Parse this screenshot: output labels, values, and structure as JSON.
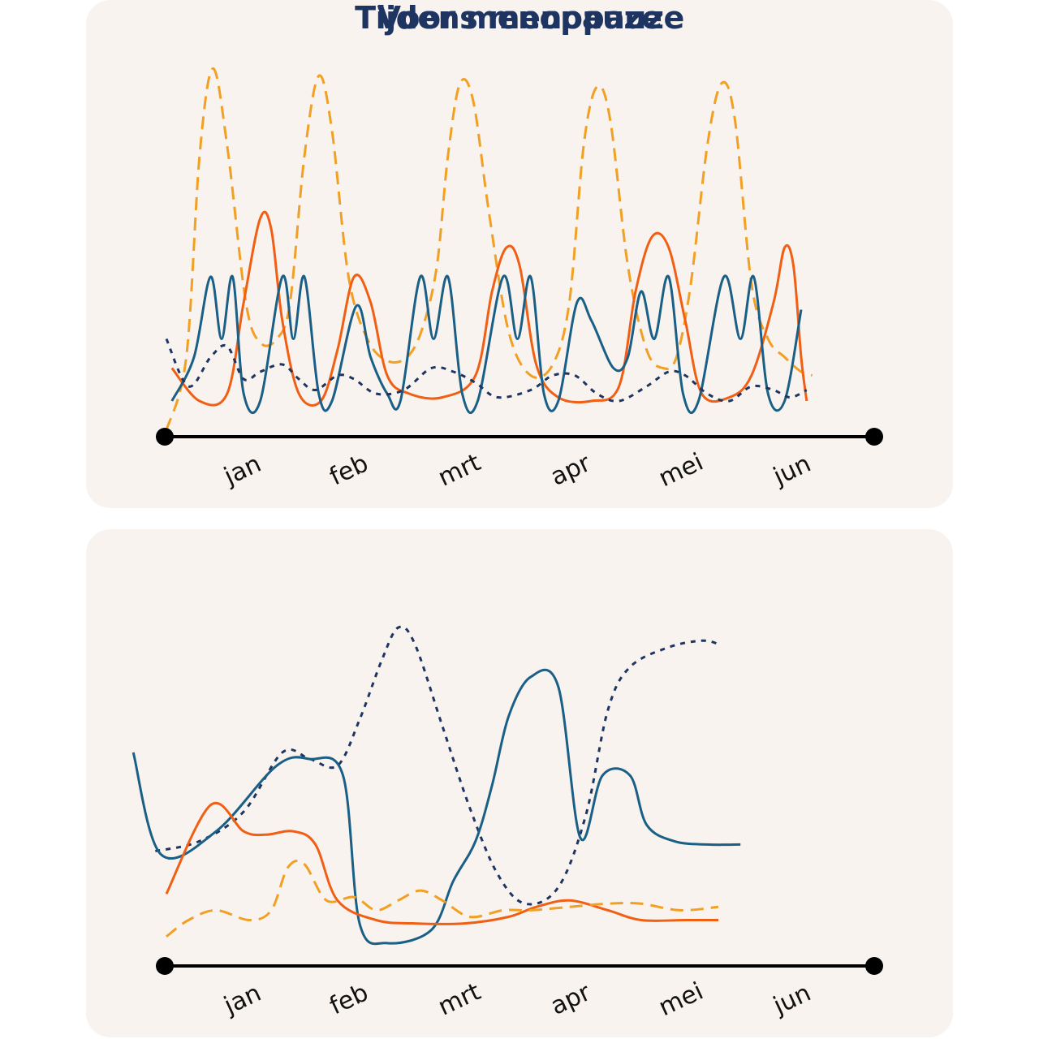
{
  "colors": {
    "panel_bg": "#f8f3ee",
    "title": "#1e3461",
    "axis": "#000000",
    "dark_blue_dotted": "#1e3461",
    "teal_blue": "#1a5f86",
    "orange": "#f05f14",
    "yellow_dashed": "#f2a024"
  },
  "chart_data": [
    {
      "type": "line",
      "title": "Voor menopauze",
      "categories": [
        "jan",
        "feb",
        "mrt",
        "apr",
        "mei",
        "jun"
      ],
      "x_range": [
        0,
        6.5
      ],
      "y_range": [
        0,
        1
      ],
      "grid": false,
      "legend": "none",
      "series": [
        {
          "style": "dashed",
          "color": "#f2a024",
          "points": [
            [
              0.0,
              0.0
            ],
            [
              0.18,
              0.2
            ],
            [
              0.3,
              0.75
            ],
            [
              0.42,
              0.99
            ],
            [
              0.55,
              0.78
            ],
            [
              0.72,
              0.35
            ],
            [
              0.85,
              0.24
            ],
            [
              1.0,
              0.25
            ],
            [
              1.12,
              0.35
            ],
            [
              1.25,
              0.75
            ],
            [
              1.38,
              0.97
            ],
            [
              1.5,
              0.82
            ],
            [
              1.65,
              0.42
            ],
            [
              1.82,
              0.25
            ],
            [
              2.0,
              0.19
            ],
            [
              2.18,
              0.2
            ],
            [
              2.32,
              0.28
            ],
            [
              2.45,
              0.45
            ],
            [
              2.55,
              0.75
            ],
            [
              2.66,
              0.95
            ],
            [
              2.78,
              0.9
            ],
            [
              2.92,
              0.6
            ],
            [
              3.1,
              0.27
            ],
            [
              3.3,
              0.15
            ],
            [
              3.5,
              0.18
            ],
            [
              3.65,
              0.35
            ],
            [
              3.78,
              0.78
            ],
            [
              3.9,
              0.94
            ],
            [
              4.02,
              0.85
            ],
            [
              4.18,
              0.45
            ],
            [
              4.35,
              0.22
            ],
            [
              4.5,
              0.17
            ],
            [
              4.62,
              0.2
            ],
            [
              4.75,
              0.4
            ],
            [
              4.9,
              0.78
            ],
            [
              5.03,
              0.95
            ],
            [
              5.15,
              0.85
            ],
            [
              5.3,
              0.4
            ],
            [
              5.45,
              0.25
            ],
            [
              5.6,
              0.2
            ],
            [
              5.75,
              0.16
            ],
            [
              5.85,
              0.15
            ]
          ]
        },
        {
          "style": "solid",
          "color": "#f05f14",
          "points": [
            [
              0.05,
              0.17
            ],
            [
              0.3,
              0.08
            ],
            [
              0.55,
              0.1
            ],
            [
              0.7,
              0.35
            ],
            [
              0.85,
              0.58
            ],
            [
              0.95,
              0.55
            ],
            [
              1.05,
              0.3
            ],
            [
              1.2,
              0.1
            ],
            [
              1.4,
              0.08
            ],
            [
              1.55,
              0.22
            ],
            [
              1.7,
              0.42
            ],
            [
              1.85,
              0.35
            ],
            [
              2.0,
              0.15
            ],
            [
              2.2,
              0.1
            ],
            [
              2.5,
              0.09
            ],
            [
              2.8,
              0.15
            ],
            [
              2.95,
              0.38
            ],
            [
              3.08,
              0.5
            ],
            [
              3.2,
              0.45
            ],
            [
              3.35,
              0.18
            ],
            [
              3.55,
              0.09
            ],
            [
              3.85,
              0.08
            ],
            [
              4.1,
              0.12
            ],
            [
              4.25,
              0.38
            ],
            [
              4.4,
              0.53
            ],
            [
              4.55,
              0.5
            ],
            [
              4.7,
              0.3
            ],
            [
              4.85,
              0.1
            ],
            [
              5.1,
              0.09
            ],
            [
              5.3,
              0.15
            ],
            [
              5.5,
              0.35
            ],
            [
              5.6,
              0.5
            ],
            [
              5.68,
              0.45
            ],
            [
              5.75,
              0.2
            ],
            [
              5.8,
              0.08
            ]
          ]
        },
        {
          "style": "solid",
          "color": "#1a5f86",
          "points": [
            [
              0.05,
              0.08
            ],
            [
              0.25,
              0.2
            ],
            [
              0.4,
              0.42
            ],
            [
              0.5,
              0.25
            ],
            [
              0.6,
              0.42
            ],
            [
              0.7,
              0.1
            ],
            [
              0.85,
              0.08
            ],
            [
              1.05,
              0.42
            ],
            [
              1.15,
              0.25
            ],
            [
              1.25,
              0.42
            ],
            [
              1.38,
              0.1
            ],
            [
              1.5,
              0.08
            ],
            [
              1.72,
              0.34
            ],
            [
              1.85,
              0.2
            ],
            [
              2.0,
              0.1
            ],
            [
              2.12,
              0.08
            ],
            [
              2.3,
              0.42
            ],
            [
              2.42,
              0.25
            ],
            [
              2.55,
              0.42
            ],
            [
              2.68,
              0.1
            ],
            [
              2.82,
              0.08
            ],
            [
              3.05,
              0.42
            ],
            [
              3.18,
              0.25
            ],
            [
              3.3,
              0.42
            ],
            [
              3.42,
              0.1
            ],
            [
              3.55,
              0.08
            ],
            [
              3.72,
              0.35
            ],
            [
              3.85,
              0.3
            ],
            [
              4.05,
              0.17
            ],
            [
              4.18,
              0.2
            ],
            [
              4.3,
              0.38
            ],
            [
              4.42,
              0.25
            ],
            [
              4.55,
              0.42
            ],
            [
              4.68,
              0.1
            ],
            [
              4.82,
              0.08
            ],
            [
              5.05,
              0.42
            ],
            [
              5.2,
              0.25
            ],
            [
              5.32,
              0.42
            ],
            [
              5.45,
              0.1
            ],
            [
              5.6,
              0.08
            ],
            [
              5.75,
              0.33
            ]
          ]
        },
        {
          "style": "dotted",
          "color": "#1e3461",
          "points": [
            [
              0.0,
              0.25
            ],
            [
              0.2,
              0.12
            ],
            [
              0.4,
              0.2
            ],
            [
              0.55,
              0.23
            ],
            [
              0.7,
              0.14
            ],
            [
              0.85,
              0.16
            ],
            [
              1.05,
              0.18
            ],
            [
              1.2,
              0.14
            ],
            [
              1.35,
              0.11
            ],
            [
              1.55,
              0.15
            ],
            [
              1.7,
              0.14
            ],
            [
              1.9,
              0.1
            ],
            [
              2.15,
              0.11
            ],
            [
              2.4,
              0.17
            ],
            [
              2.6,
              0.16
            ],
            [
              2.8,
              0.13
            ],
            [
              3.0,
              0.09
            ],
            [
              3.3,
              0.11
            ],
            [
              3.5,
              0.15
            ],
            [
              3.7,
              0.15
            ],
            [
              3.9,
              0.1
            ],
            [
              4.1,
              0.08
            ],
            [
              4.35,
              0.12
            ],
            [
              4.55,
              0.16
            ],
            [
              4.7,
              0.15
            ],
            [
              4.9,
              0.1
            ],
            [
              5.1,
              0.08
            ],
            [
              5.3,
              0.12
            ],
            [
              5.5,
              0.11
            ],
            [
              5.65,
              0.09
            ],
            [
              5.8,
              0.11
            ]
          ]
        }
      ]
    },
    {
      "type": "line",
      "title": "Tijdens menopauze",
      "categories": [
        "jan",
        "feb",
        "mrt",
        "apr",
        "mei",
        "jun"
      ],
      "x_range": [
        0,
        6.5
      ],
      "y_range": [
        0,
        1
      ],
      "grid": false,
      "legend": "none",
      "series": [
        {
          "style": "dotted",
          "color": "#1e3461",
          "points": [
            [
              -0.1,
              0.3
            ],
            [
              0.3,
              0.33
            ],
            [
              0.7,
              0.42
            ],
            [
              1.05,
              0.6
            ],
            [
              1.3,
              0.58
            ],
            [
              1.55,
              0.56
            ],
            [
              1.75,
              0.7
            ],
            [
              1.95,
              0.88
            ],
            [
              2.1,
              0.98
            ],
            [
              2.25,
              0.93
            ],
            [
              2.5,
              0.68
            ],
            [
              2.75,
              0.43
            ],
            [
              3.0,
              0.23
            ],
            [
              3.25,
              0.14
            ],
            [
              3.55,
              0.19
            ],
            [
              3.8,
              0.41
            ],
            [
              4.0,
              0.73
            ],
            [
              4.2,
              0.86
            ],
            [
              4.55,
              0.92
            ],
            [
              4.85,
              0.94
            ],
            [
              5.0,
              0.93
            ]
          ]
        },
        {
          "style": "solid",
          "color": "#1a5f86",
          "points": [
            [
              -0.3,
              0.6
            ],
            [
              -0.05,
              0.29
            ],
            [
              0.45,
              0.36
            ],
            [
              1.0,
              0.56
            ],
            [
              1.3,
              0.58
            ],
            [
              1.6,
              0.53
            ],
            [
              1.75,
              0.08
            ],
            [
              2.0,
              0.02
            ],
            [
              2.4,
              0.06
            ],
            [
              2.6,
              0.21
            ],
            [
              2.8,
              0.33
            ],
            [
              2.95,
              0.5
            ],
            [
              3.1,
              0.71
            ],
            [
              3.3,
              0.83
            ],
            [
              3.55,
              0.8
            ],
            [
              3.75,
              0.34
            ],
            [
              3.95,
              0.53
            ],
            [
              4.2,
              0.53
            ],
            [
              4.35,
              0.38
            ],
            [
              4.6,
              0.33
            ],
            [
              4.9,
              0.32
            ],
            [
              5.2,
              0.32
            ]
          ]
        },
        {
          "style": "solid",
          "color": "#f05f14",
          "points": [
            [
              0.0,
              0.17
            ],
            [
              0.4,
              0.44
            ],
            [
              0.7,
              0.36
            ],
            [
              0.9,
              0.35
            ],
            [
              1.15,
              0.36
            ],
            [
              1.35,
              0.32
            ],
            [
              1.55,
              0.15
            ],
            [
              1.9,
              0.09
            ],
            [
              2.25,
              0.08
            ],
            [
              2.7,
              0.08
            ],
            [
              3.1,
              0.1
            ],
            [
              3.35,
              0.13
            ],
            [
              3.65,
              0.15
            ],
            [
              4.0,
              0.12
            ],
            [
              4.3,
              0.09
            ],
            [
              4.7,
              0.09
            ],
            [
              5.0,
              0.09
            ]
          ]
        },
        {
          "style": "dashed",
          "color": "#f2a024",
          "points": [
            [
              0.0,
              0.04
            ],
            [
              0.2,
              0.09
            ],
            [
              0.45,
              0.12
            ],
            [
              0.75,
              0.09
            ],
            [
              0.95,
              0.12
            ],
            [
              1.1,
              0.25
            ],
            [
              1.25,
              0.26
            ],
            [
              1.45,
              0.15
            ],
            [
              1.7,
              0.16
            ],
            [
              1.9,
              0.12
            ],
            [
              2.1,
              0.15
            ],
            [
              2.3,
              0.18
            ],
            [
              2.5,
              0.15
            ],
            [
              2.75,
              0.1
            ],
            [
              3.05,
              0.12
            ],
            [
              3.3,
              0.12
            ],
            [
              3.65,
              0.13
            ],
            [
              4.0,
              0.14
            ],
            [
              4.3,
              0.14
            ],
            [
              4.65,
              0.12
            ],
            [
              5.0,
              0.13
            ]
          ]
        }
      ]
    }
  ]
}
